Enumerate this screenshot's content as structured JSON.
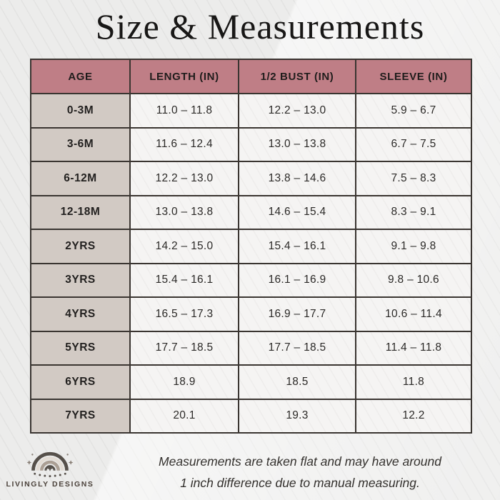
{
  "title": "Size & Measurements",
  "chart_data": {
    "type": "table",
    "title": "Size & Measurements",
    "columns": [
      "AGE",
      "LENGTH (IN)",
      "1/2 BUST (IN)",
      "SLEEVE (IN)"
    ],
    "rows": [
      [
        "0-3M",
        "11.0 – 11.8",
        "12.2 – 13.0",
        "5.9 – 6.7"
      ],
      [
        "3-6M",
        "11.6 – 12.4",
        "13.0 – 13.8",
        "6.7 – 7.5"
      ],
      [
        "6-12M",
        "12.2 – 13.0",
        "13.8 – 14.6",
        "7.5 – 8.3"
      ],
      [
        "12-18M",
        "13.0 – 13.8",
        "14.6 – 15.4",
        "8.3 – 9.1"
      ],
      [
        "2YRS",
        "14.2 – 15.0",
        "15.4 – 16.1",
        "9.1 – 9.8"
      ],
      [
        "3YRS",
        "15.4 – 16.1",
        "16.1 – 16.9",
        "9.8 – 10.6"
      ],
      [
        "4YRS",
        "16.5 – 17.3",
        "16.9 – 17.7",
        "10.6 – 11.4"
      ],
      [
        "5YRS",
        "17.7 – 18.5",
        "17.7 – 18.5",
        "11.4 – 11.8"
      ],
      [
        "6YRS",
        "18.9",
        "18.5",
        "11.8"
      ],
      [
        "7YRS",
        "20.1",
        "19.3",
        "12.2"
      ]
    ],
    "note": "Measurements are taken flat and may have around 1 inch difference due to manual measuring."
  },
  "footer": {
    "note_line1": "Measurements are taken flat and may have around",
    "note_line2": "1 inch difference due to manual measuring."
  },
  "brand": {
    "name": "LIVINGLY DESIGNS",
    "icon": "boho-rainbow-icon"
  },
  "colors": {
    "page_bg": "#ececeb",
    "header_bg": "#bf7e86",
    "age_bg": "#d2cac4",
    "cell_bg": "#f5f4f3",
    "border": "#3a3531",
    "title_text": "#181716",
    "note_text": "#34312e",
    "brand_text": "#4c433c",
    "rainbow_dark": "#56504a",
    "rainbow_cream": "#e3dcd4",
    "rainbow_taupe": "#ab9f94"
  }
}
